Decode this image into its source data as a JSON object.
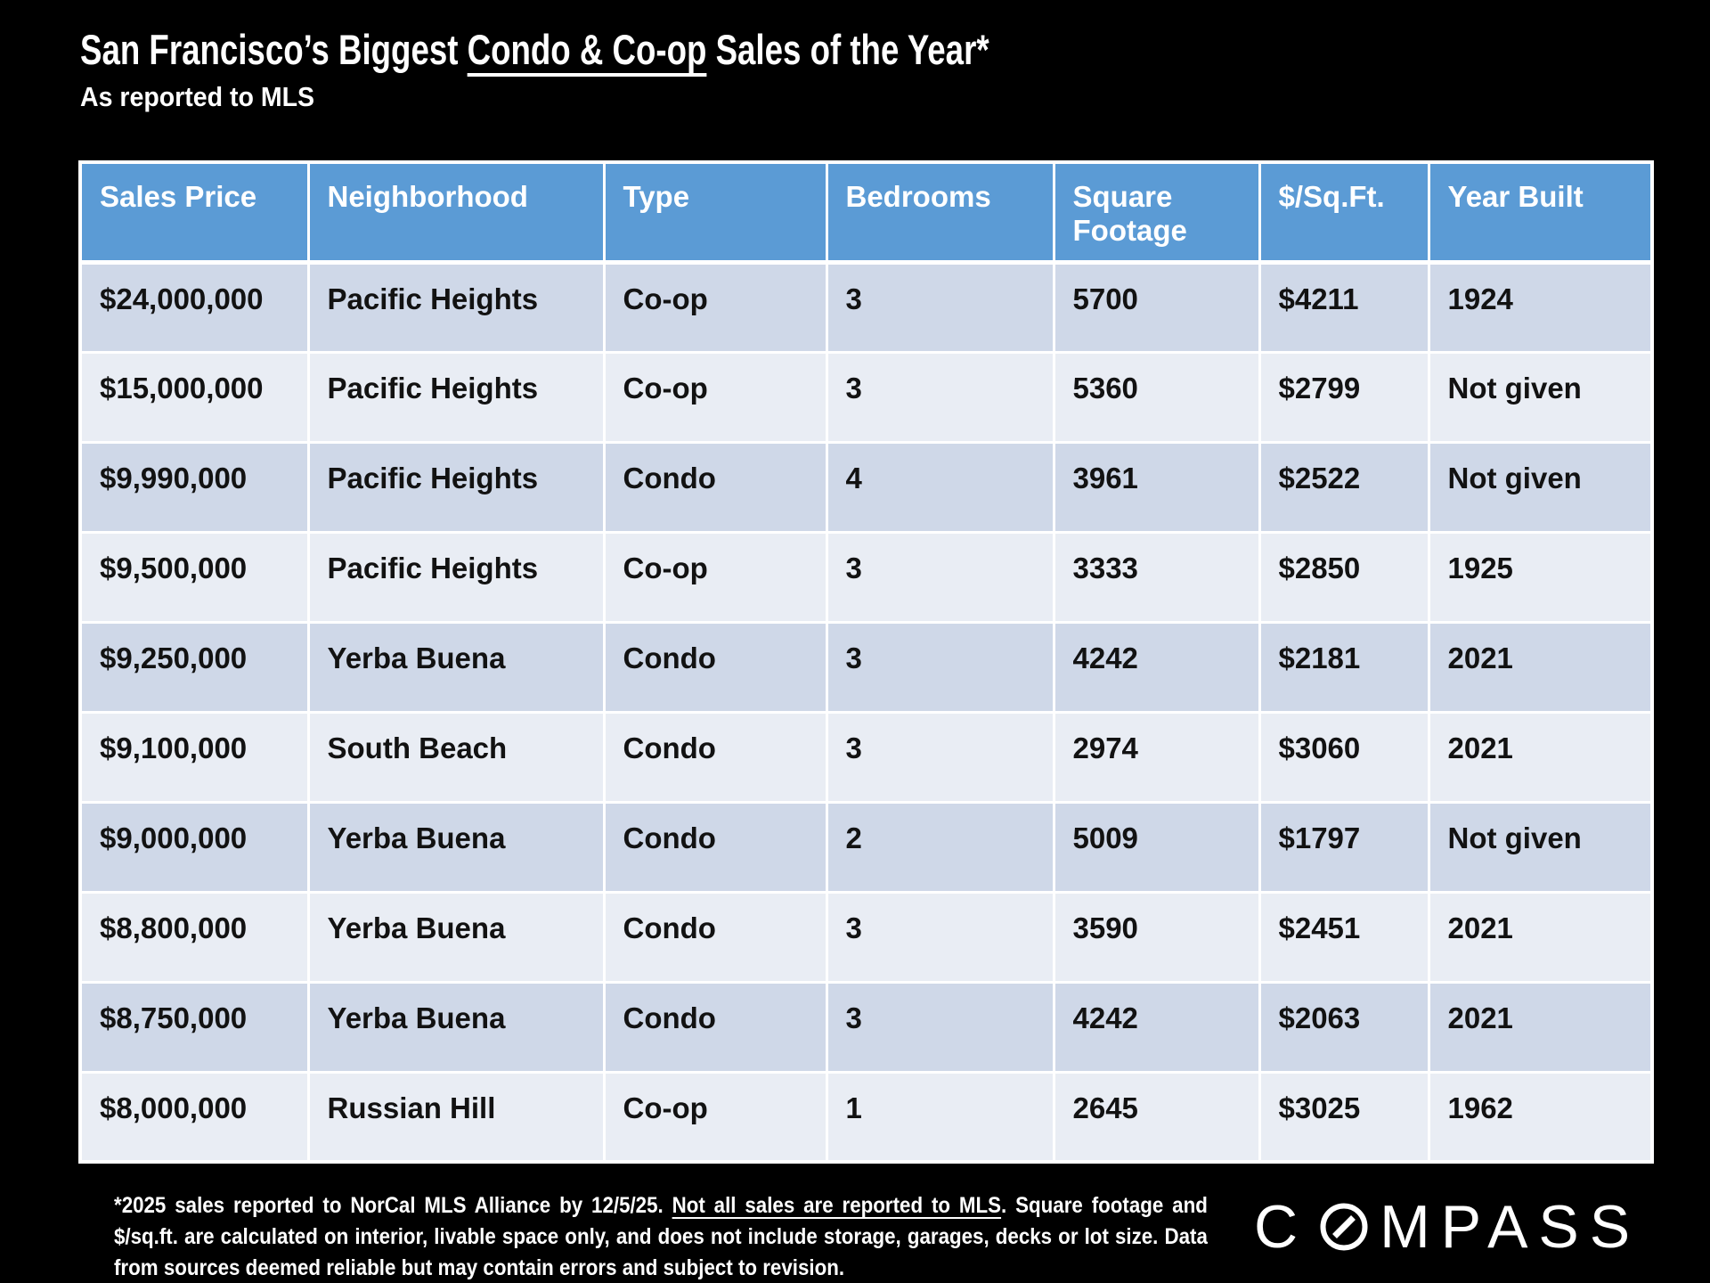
{
  "colors": {
    "background": "#000000",
    "header_blue": "#5B9BD5",
    "row_band_dark": "#CFD8E8",
    "row_band_light": "#E9EDF4",
    "grid_white": "#FFFFFF",
    "title_text": "#FFFFFF",
    "cell_text": "#121212"
  },
  "header": {
    "title_prefix": "San Francisco’s Biggest ",
    "title_underlined": "Condo & Co-op",
    "title_suffix": " Sales of the Year*",
    "subtitle": "As reported to MLS"
  },
  "chart_data": {
    "type": "table",
    "title": "San Francisco’s Biggest Condo & Co-op Sales of the Year*",
    "subtitle": "As reported to MLS",
    "columns": [
      "Sales Price",
      "Neighborhood",
      "Type",
      "Bedrooms",
      "Square Footage",
      "$/Sq.Ft.",
      "Year Built"
    ],
    "rows": [
      [
        "$24,000,000",
        "Pacific Heights",
        "Co-op",
        "3",
        "5700",
        "$4211",
        "1924"
      ],
      [
        "$15,000,000",
        "Pacific Heights",
        "Co-op",
        "3",
        "5360",
        "$2799",
        "Not given"
      ],
      [
        "$9,990,000",
        "Pacific Heights",
        "Condo",
        "4",
        "3961",
        "$2522",
        "Not given"
      ],
      [
        "$9,500,000",
        "Pacific Heights",
        "Co-op",
        "3",
        "3333",
        "$2850",
        "1925"
      ],
      [
        "$9,250,000",
        "Yerba Buena",
        "Condo",
        "3",
        "4242",
        "$2181",
        "2021"
      ],
      [
        "$9,100,000",
        "South Beach",
        "Condo",
        "3",
        "2974",
        "$3060",
        "2021"
      ],
      [
        "$9,000,000",
        "Yerba Buena",
        "Condo",
        "2",
        "5009",
        "$1797",
        "Not given"
      ],
      [
        "$8,800,000",
        "Yerba Buena",
        "Condo",
        "3",
        "3590",
        "$2451",
        "2021"
      ],
      [
        "$8,750,000",
        "Yerba Buena",
        "Condo",
        "3",
        "4242",
        "$2063",
        "2021"
      ],
      [
        "$8,000,000",
        "Russian Hill",
        "Co-op",
        "1",
        "2645",
        "$3025",
        "1962"
      ]
    ]
  },
  "footnote": {
    "part1": "*2025 sales reported to NorCal MLS Alliance by 12/5/25. ",
    "underlined": "Not all sales are reported to MLS",
    "part2": ". Square footage and $/sq.ft. are calculated on interior, livable space only, and does not include storage, garages, decks or lot size. Data from sources deemed reliable but may contain errors and subject to revision."
  },
  "logo": {
    "brand": "COMPASS",
    "letters_before_o": "C",
    "letters_after_o": "MPASS",
    "o_icon": "compass-slashed-o-icon"
  }
}
